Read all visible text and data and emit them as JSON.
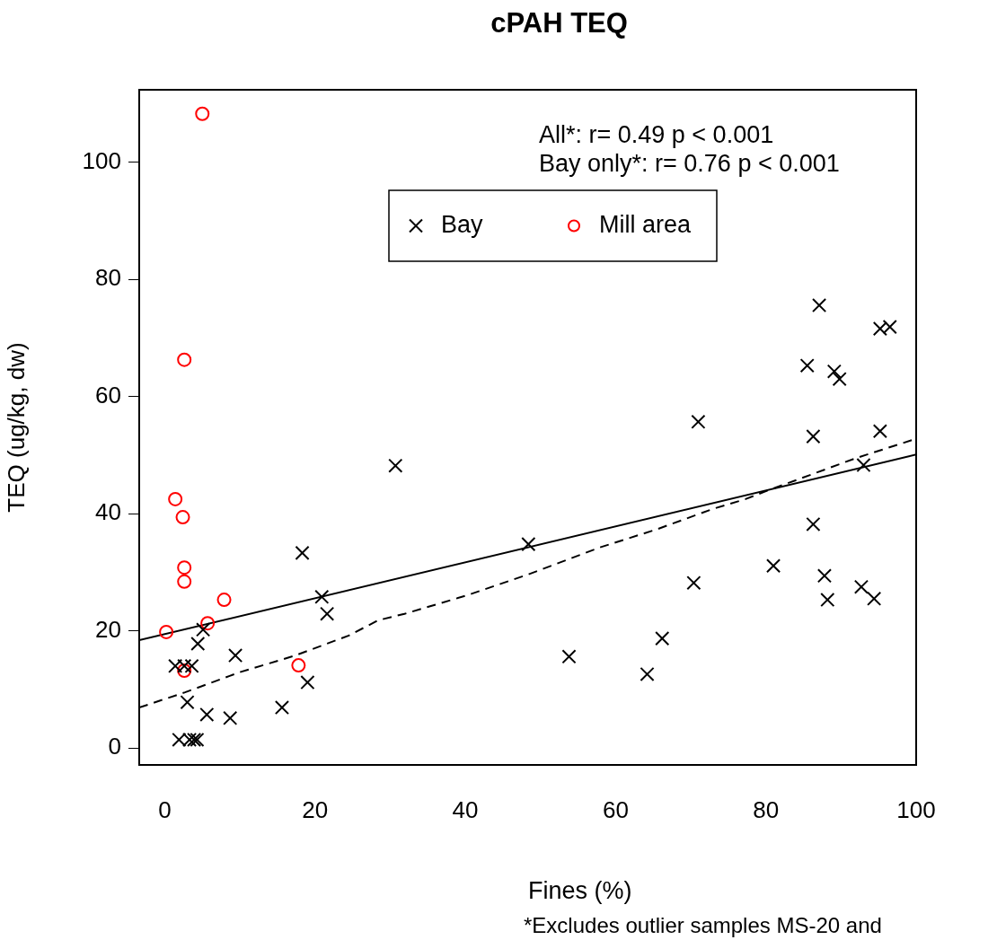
{
  "chart_data": {
    "type": "scatter",
    "title": "cPAH TEQ",
    "xlabel": "Fines (%)",
    "ylabel": "TEQ (ug/kg, dw)",
    "annotations": [
      "All*: r= 0.49 p < 0.001",
      "Bay only*: r= 0.76 p < 0.001",
      "*Excludes outlier samples MS-20 and"
    ],
    "xlim": [
      -3.4,
      100
    ],
    "ylim": [
      -2.9,
      112.4
    ],
    "xticks": [
      0,
      20,
      40,
      60,
      80,
      100
    ],
    "yticks": [
      0,
      20,
      40,
      60,
      80,
      100
    ],
    "grid": false,
    "legend": "top",
    "series": [
      {
        "name": "Bay",
        "marker": "cross",
        "color": "#000000",
        "x": [
          1.4,
          2.6,
          3.6,
          4.4,
          5.1,
          3.0,
          5.6,
          8.7,
          1.9,
          3.3,
          3.9,
          4.3,
          9.4,
          15.6,
          19.0,
          18.3,
          20.9,
          21.6,
          30.7,
          48.4,
          53.8,
          71.0,
          70.4,
          66.2,
          64.2,
          87.1,
          95.2,
          96.5,
          85.5,
          89.1,
          89.8,
          86.3,
          95.2,
          93.0,
          86.3,
          81.0,
          87.8,
          88.2,
          92.7,
          94.4
        ],
        "values": [
          14.0,
          14.0,
          14.0,
          17.8,
          20.2,
          7.8,
          5.7,
          5.1,
          1.4,
          1.4,
          1.4,
          1.4,
          15.8,
          6.9,
          11.2,
          33.3,
          25.8,
          22.9,
          48.2,
          34.8,
          15.6,
          55.7,
          28.2,
          18.7,
          12.6,
          75.6,
          71.6,
          71.9,
          65.3,
          64.3,
          63.0,
          53.2,
          54.1,
          48.3,
          38.2,
          31.1,
          29.4,
          25.3,
          27.5,
          25.5
        ]
      },
      {
        "name": "Mill area",
        "marker": "circle",
        "color": "#ff0000",
        "x": [
          5.0,
          2.6,
          1.4,
          2.4,
          2.6,
          2.6,
          7.9,
          5.7,
          0.2,
          2.6,
          17.8
        ],
        "values": [
          108.3,
          66.3,
          42.5,
          39.4,
          30.8,
          28.4,
          25.3,
          21.3,
          19.8,
          13.2,
          14.1
        ]
      },
      {
        "type": "line",
        "line_style": "solid",
        "marker": "none",
        "color": "#000000",
        "x": [
          -3.4,
          100
        ],
        "values": [
          18.4,
          50.1
        ]
      },
      {
        "type": "line",
        "line_style": "dashed",
        "marker": "none",
        "color": "#000000",
        "x": [
          -3.4,
          2.7,
          9.9,
          17.4,
          24.5,
          28.4,
          31.9,
          40.3,
          48.3,
          57.8,
          65.4,
          72.9,
          77.3,
          79.7,
          92.0,
          100
        ],
        "values": [
          6.9,
          9.5,
          12.9,
          15.8,
          19.2,
          21.8,
          22.9,
          26.1,
          29.6,
          34.2,
          37.3,
          40.8,
          42.5,
          43.7,
          49.5,
          52.8
        ]
      }
    ]
  }
}
